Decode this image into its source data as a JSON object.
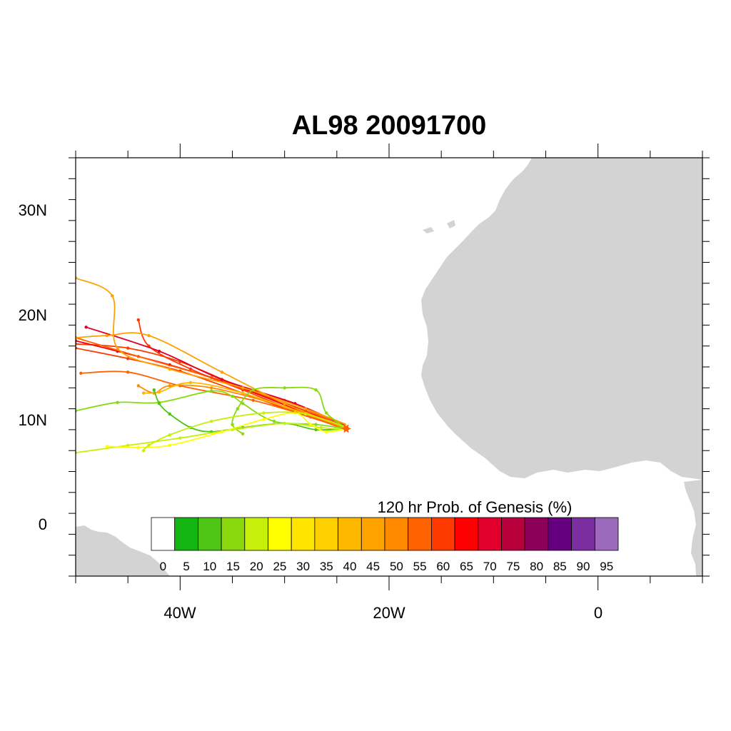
{
  "title": "AL98 20091700",
  "axes": {
    "y_labels": [
      "30N",
      "20N",
      "10N",
      "0"
    ],
    "x_labels": [
      "40W",
      "20W",
      "0"
    ]
  },
  "colorbar": {
    "title": "120 hr Prob. of Genesis (%)",
    "labels": [
      "0",
      "5",
      "10",
      "15",
      "20",
      "25",
      "30",
      "35",
      "40",
      "45",
      "50",
      "55",
      "60",
      "65",
      "70",
      "75",
      "80",
      "85",
      "90",
      "95"
    ],
    "colors": [
      "#ffffff",
      "#13b513",
      "#4ec515",
      "#8ad90f",
      "#c6ef0a",
      "#ffff00",
      "#ffe400",
      "#ffd000",
      "#ffb800",
      "#ffa200",
      "#ff8a00",
      "#ff6200",
      "#ff3a00",
      "#ff0000",
      "#e0002b",
      "#b8003c",
      "#8c005a",
      "#640080",
      "#7a2ea0",
      "#9b6abb"
    ]
  },
  "land_color": "#d3d3d3",
  "chart_data": {
    "type": "map-tracks",
    "title": "AL98 20091700",
    "lon_range": [
      -50,
      10
    ],
    "lat_range": [
      -5,
      35
    ],
    "storm_start": {
      "lon": -24.1,
      "lat": 9.1
    },
    "tracks": [
      {
        "color": "#ff3a00",
        "points": [
          [
            -24.1,
            9.1
          ],
          [
            -28,
            10.8
          ],
          [
            -34,
            13
          ],
          [
            -40,
            15.5
          ],
          [
            -45,
            16.8
          ],
          [
            -50,
            17.2
          ]
        ]
      },
      {
        "color": "#ff3a00",
        "points": [
          [
            -24.1,
            9.1
          ],
          [
            -28.5,
            10.5
          ],
          [
            -34,
            12.5
          ],
          [
            -40,
            14.6
          ],
          [
            -45,
            15.8
          ],
          [
            -50,
            16.8
          ]
        ]
      },
      {
        "color": "#ff0000",
        "points": [
          [
            -24.1,
            9.3
          ],
          [
            -29,
            11
          ],
          [
            -35,
            13.3
          ],
          [
            -41,
            15.2
          ],
          [
            -46,
            16.5
          ],
          [
            -50,
            17.5
          ]
        ]
      },
      {
        "color": "#ff6200",
        "points": [
          [
            -24.1,
            9.2
          ],
          [
            -30,
            11.8
          ],
          [
            -37,
            14
          ],
          [
            -44,
            16
          ],
          [
            -50,
            17.8
          ]
        ]
      },
      {
        "color": "#ff3a00",
        "points": [
          [
            -24.1,
            9.0
          ],
          [
            -29,
            10.8
          ],
          [
            -34,
            12.8
          ],
          [
            -39,
            14.8
          ],
          [
            -43,
            17
          ],
          [
            -44,
            19.5
          ]
        ]
      },
      {
        "color": "#e0002b",
        "points": [
          [
            -24.2,
            9.4
          ],
          [
            -29,
            11.5
          ],
          [
            -36,
            13.8
          ],
          [
            -42,
            16.5
          ],
          [
            -49,
            18.8
          ]
        ]
      },
      {
        "color": "#ff6200",
        "points": [
          [
            -24.1,
            9.0
          ],
          [
            -27.5,
            10.2
          ],
          [
            -33,
            11.8
          ],
          [
            -40,
            13.2
          ],
          [
            -45,
            14.5
          ],
          [
            -49.5,
            14.4
          ]
        ]
      },
      {
        "color": "#ffa200",
        "points": [
          [
            -24.1,
            9.1
          ],
          [
            -30,
            11.5
          ],
          [
            -36,
            14.5
          ],
          [
            -43,
            18
          ],
          [
            -47,
            18
          ],
          [
            -50,
            17.8
          ]
        ]
      },
      {
        "color": "#ff8a00",
        "points": [
          [
            -24.1,
            9.1
          ],
          [
            -30,
            11.2
          ],
          [
            -37,
            13
          ],
          [
            -41,
            13.2
          ],
          [
            -42.5,
            12.5
          ],
          [
            -44,
            13.2
          ]
        ]
      },
      {
        "color": "#ffb800",
        "points": [
          [
            -24.1,
            9.3
          ],
          [
            -28,
            10.5
          ],
          [
            -34,
            12.5
          ],
          [
            -39,
            13.5
          ],
          [
            -42,
            12.6
          ],
          [
            -43.5,
            12.5
          ]
        ]
      },
      {
        "color": "#ffa200",
        "points": [
          [
            -24.1,
            9.5
          ],
          [
            -28,
            11
          ],
          [
            -34,
            13
          ],
          [
            -41,
            14.8
          ],
          [
            -46,
            16.8
          ],
          [
            -46.5,
            21.8
          ],
          [
            -50,
            23.5
          ]
        ]
      },
      {
        "color": "#8ad90f",
        "points": [
          [
            -24.1,
            9.1
          ],
          [
            -27,
            9.5
          ],
          [
            -31,
            9.8
          ],
          [
            -34,
            11.5
          ],
          [
            -35,
            12.2
          ],
          [
            -37,
            12.7
          ],
          [
            -42,
            11.6
          ],
          [
            -46,
            11.6
          ],
          [
            -50,
            10.8
          ]
        ]
      },
      {
        "color": "#4ec515",
        "points": [
          [
            -24.1,
            9.1
          ],
          [
            -27,
            9.0
          ],
          [
            -30,
            9.6
          ],
          [
            -34,
            9.2
          ],
          [
            -37,
            8.8
          ],
          [
            -39,
            9.2
          ],
          [
            -41,
            10.5
          ],
          [
            -42,
            11.5
          ],
          [
            -42.5,
            12.8
          ]
        ]
      },
      {
        "color": "#8ad90f",
        "points": [
          [
            -24.1,
            9.2
          ],
          [
            -26,
            10.6
          ],
          [
            -27,
            12.8
          ],
          [
            -30,
            13
          ],
          [
            -33,
            12.8
          ],
          [
            -34.5,
            11
          ],
          [
            -35,
            9.5
          ],
          [
            -34,
            8.6
          ]
        ]
      },
      {
        "color": "#c6ef0a",
        "points": [
          [
            -24.1,
            9.0
          ],
          [
            -26.5,
            9.2
          ],
          [
            -30,
            9.6
          ],
          [
            -35,
            9.0
          ],
          [
            -40,
            8.2
          ],
          [
            -45,
            7.5
          ],
          [
            -50,
            6.8
          ]
        ]
      },
      {
        "color": "#ffff00",
        "points": [
          [
            -24.1,
            9.1
          ],
          [
            -26,
            8.8
          ],
          [
            -27.5,
            9.5
          ],
          [
            -29,
            10.6
          ],
          [
            -32,
            10
          ],
          [
            -36,
            8.8
          ],
          [
            -41,
            7.5
          ],
          [
            -44,
            7.3
          ],
          [
            -47,
            7.4
          ]
        ]
      },
      {
        "color": "#c6ef0a",
        "points": [
          [
            -24.1,
            9.2
          ],
          [
            -28,
            10.5
          ],
          [
            -32,
            10.6
          ],
          [
            -37,
            9.8
          ],
          [
            -41,
            8.5
          ],
          [
            -43,
            7.5
          ],
          [
            -43.5,
            7.0
          ]
        ]
      }
    ]
  }
}
